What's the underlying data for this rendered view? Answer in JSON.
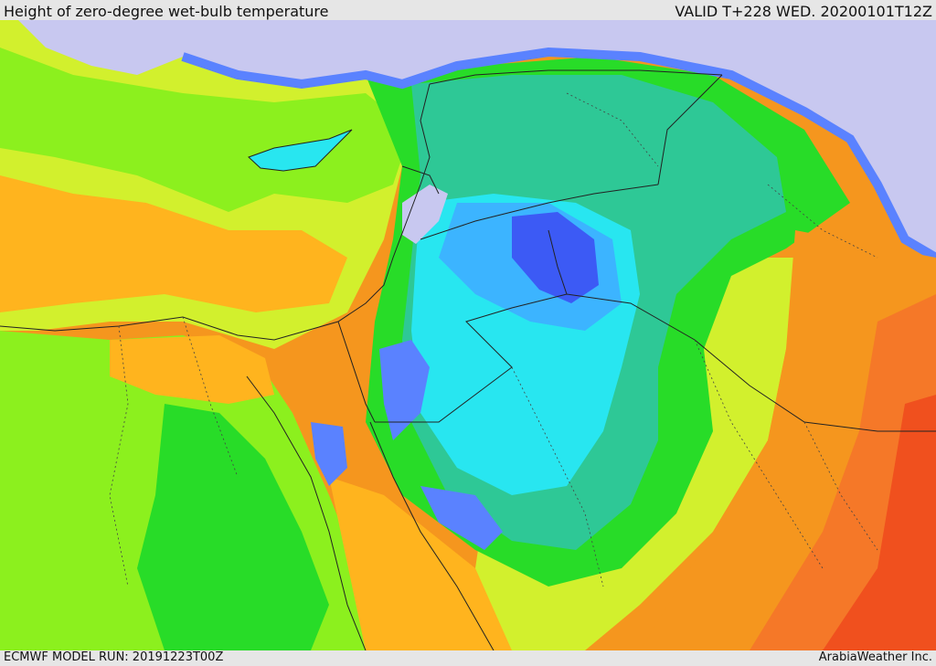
{
  "header": {
    "title": "Height of zero-degree wet-bulb temperature",
    "valid": "VALID T+228 WED. 20200101T12Z"
  },
  "footer": {
    "model_run": "ECMWF MODEL RUN: 20191223T00Z",
    "credit": "ArabiaWeather Inc."
  },
  "palette": {
    "lavender": "#c8c8f0",
    "blue_dark": "#3c5af5",
    "blue_mid": "#5a82ff",
    "sky": "#3cb4ff",
    "cyan": "#28e6f0",
    "teal": "#2ec896",
    "green": "#28dc28",
    "lime": "#8cf01e",
    "yellow_green": "#d2f02d",
    "yellow": "#f5e632",
    "orange_light": "#ffb41e",
    "orange": "#f5961e",
    "orange_red": "#f57828",
    "red": "#f0501e"
  }
}
